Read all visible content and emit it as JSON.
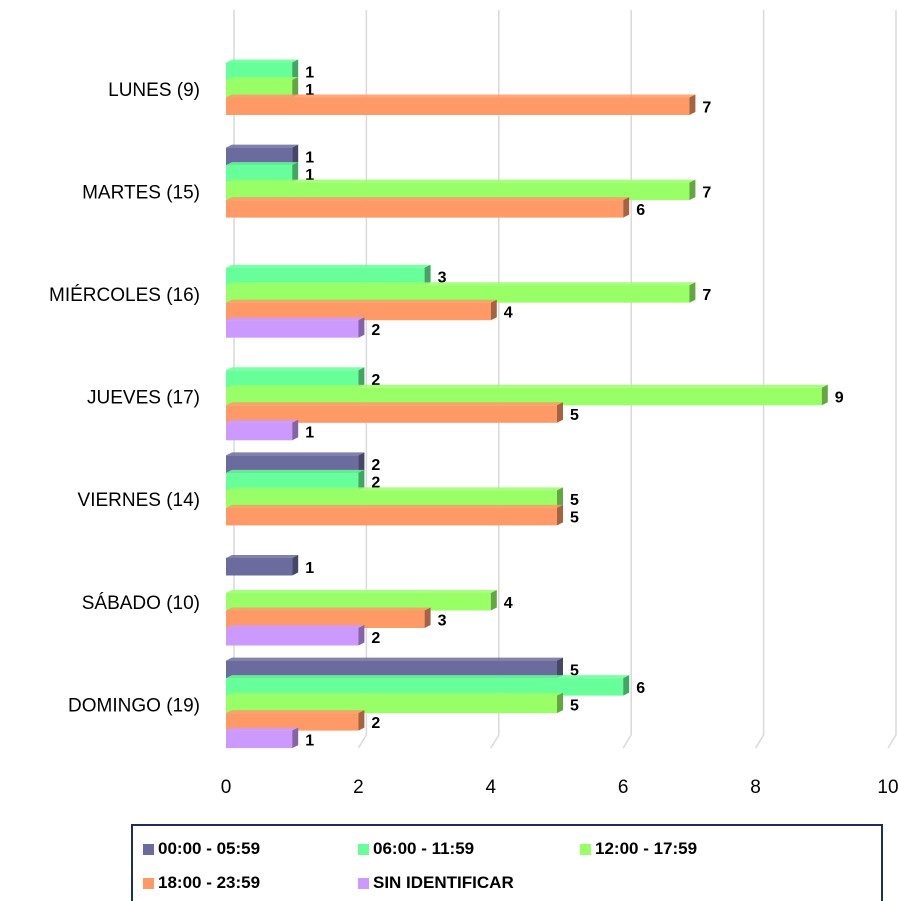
{
  "chart_data": {
    "type": "bar",
    "orientation": "horizontal",
    "categories": [
      "LUNES (9)",
      "MARTES (15)",
      "MIÉRCOLES (16)",
      "JUEVES (17)",
      "VIERNES (14)",
      "SÁBADO (10)",
      "DOMINGO (19)"
    ],
    "series": [
      {
        "name": "00:00 - 05:59",
        "color": "#6b6b9e",
        "values": [
          null,
          1,
          null,
          null,
          2,
          1,
          5
        ]
      },
      {
        "name": "06:00 - 11:59",
        "color": "#66ff99",
        "values": [
          1,
          1,
          3,
          2,
          2,
          null,
          6
        ]
      },
      {
        "name": "12:00 - 17:59",
        "color": "#99ff66",
        "values": [
          1,
          7,
          7,
          9,
          5,
          4,
          5
        ]
      },
      {
        "name": "18:00 - 23:59",
        "color": "#ff9966",
        "values": [
          7,
          6,
          4,
          5,
          5,
          3,
          2
        ]
      },
      {
        "name": "SIN IDENTIFICAR",
        "color": "#cc99ff",
        "values": [
          null,
          null,
          2,
          1,
          null,
          2,
          1
        ]
      }
    ],
    "xlim": [
      0,
      10
    ],
    "x_ticks": [
      "0",
      "2",
      "4",
      "6",
      "8",
      "10"
    ],
    "grid": true,
    "legend_position": "bottom",
    "title": "",
    "xlabel": "",
    "ylabel": ""
  }
}
